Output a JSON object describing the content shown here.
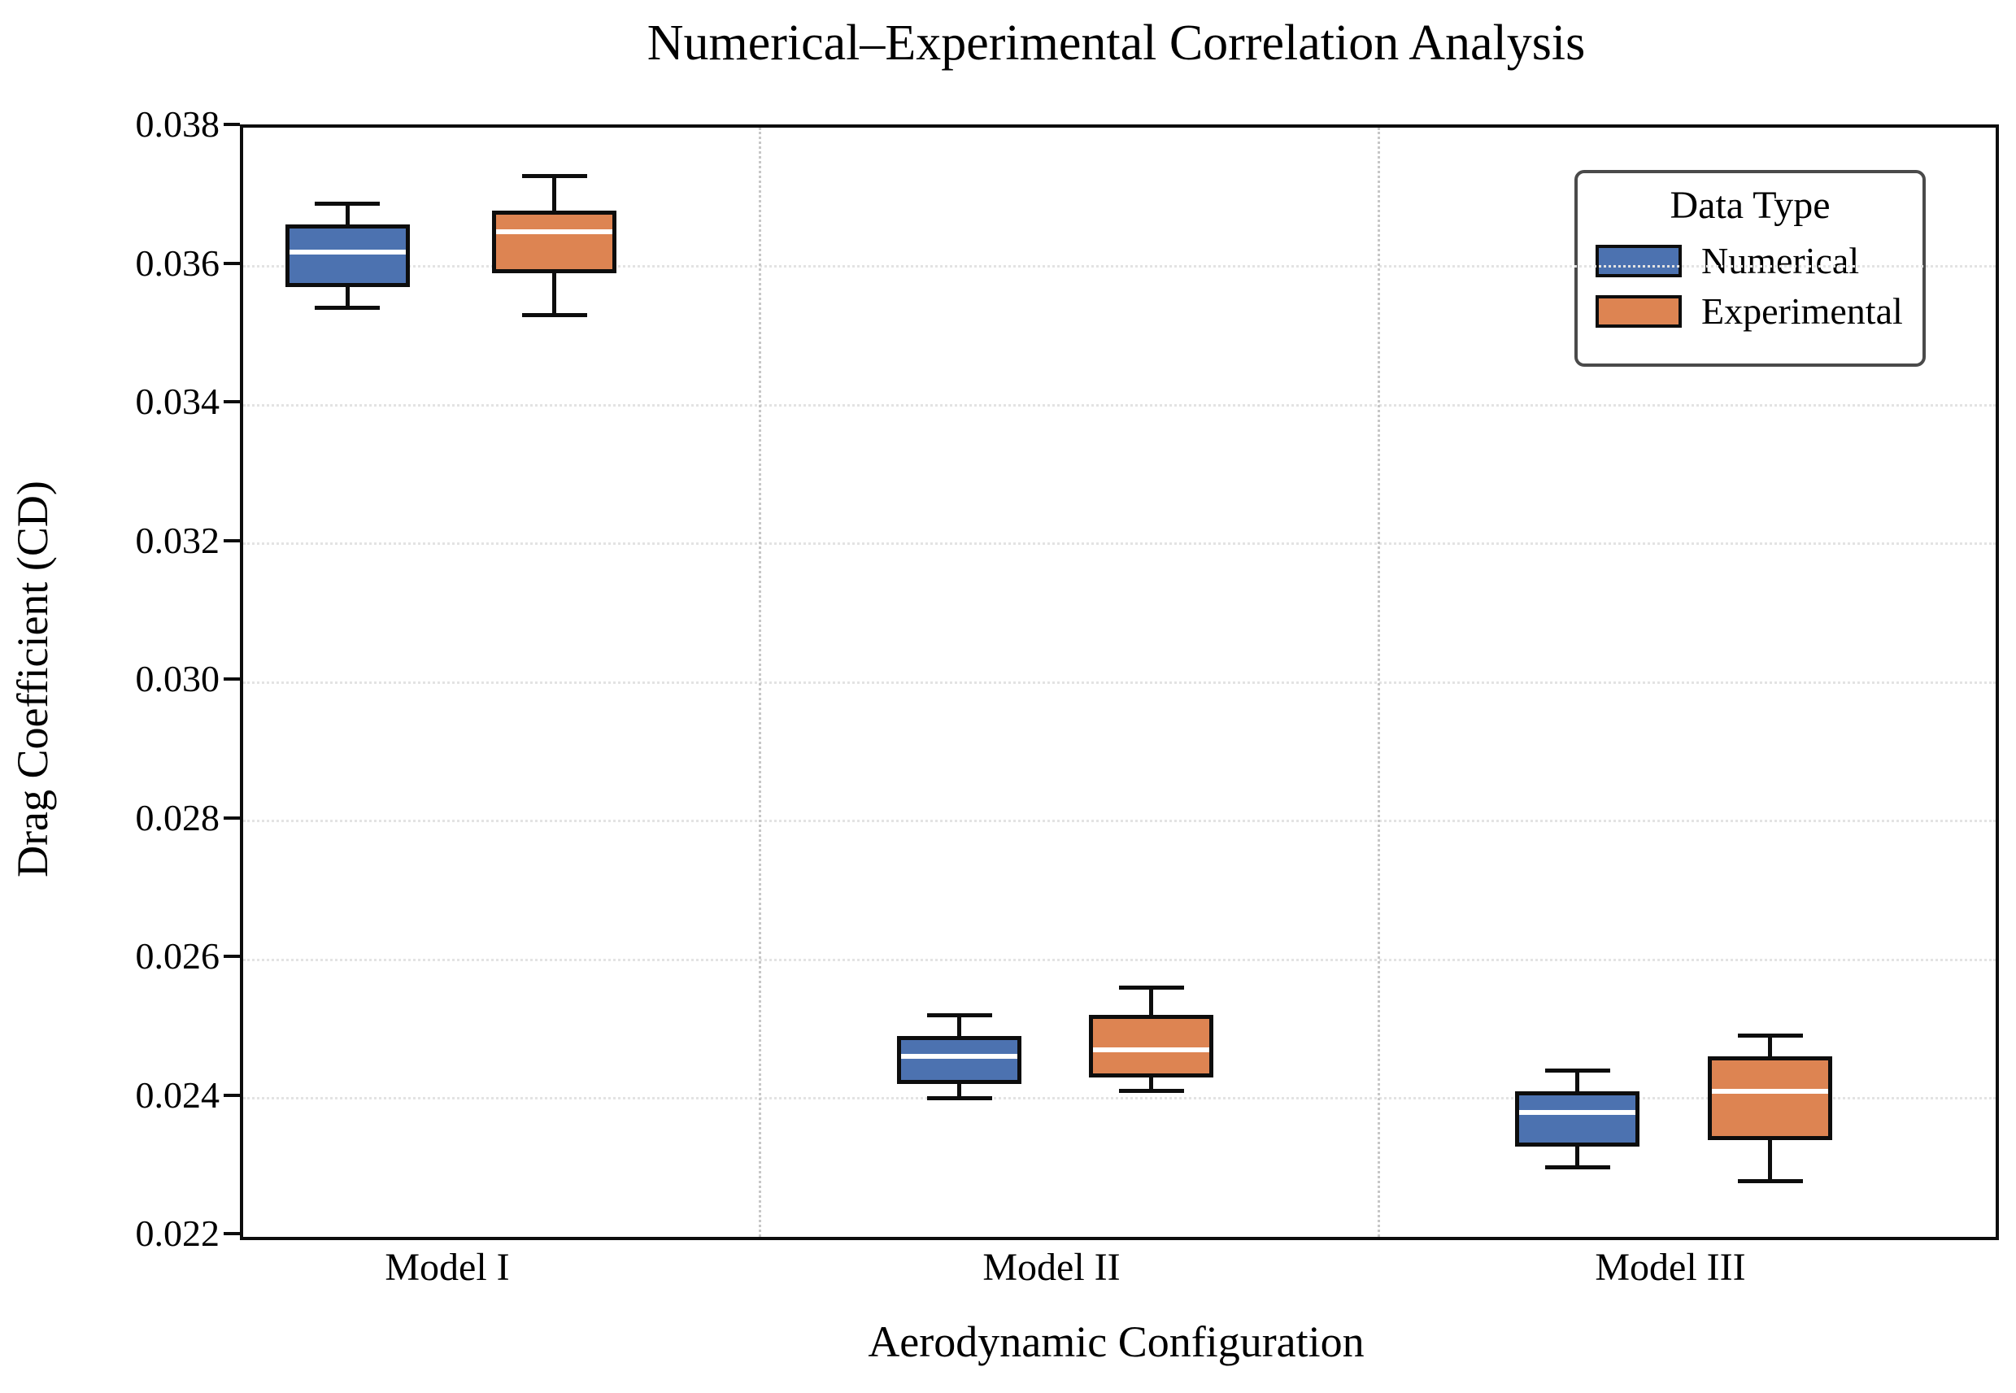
{
  "chart_data": {
    "type": "boxplot",
    "title": "Numerical–Experimental Correlation Analysis",
    "xlabel": "Aerodynamic Configuration",
    "ylabel": "Drag Coefficient (CD)",
    "categories": [
      "Model I",
      "Model II",
      "Model III"
    ],
    "ylim": [
      0.022,
      0.038
    ],
    "y_ticks": [
      0.022,
      0.024,
      0.026,
      0.028,
      0.03,
      0.032,
      0.034,
      0.036,
      0.038
    ],
    "y_tick_labels": [
      "0.022",
      "0.024",
      "0.026",
      "0.028",
      "0.030",
      "0.032",
      "0.034",
      "0.036",
      "0.038"
    ],
    "grid": {
      "horizontal": "dotted",
      "vertical_category_separators": "dotted",
      "legend_position": "upper right"
    },
    "colors": {
      "numerical": "#4C72B0",
      "experimental": "#DD8452",
      "median_line": "#FFFFFF",
      "box_edge": "#0d0d0d"
    },
    "legend": {
      "title": "Data Type",
      "entries": [
        {
          "label": "Numerical",
          "color": "#4C72B0"
        },
        {
          "label": "Experimental",
          "color": "#DD8452"
        }
      ]
    },
    "series": [
      {
        "name": "Numerical",
        "color": "#4C72B0",
        "boxes": [
          {
            "category": "Model I",
            "whisker_low": 0.0354,
            "q1": 0.0357,
            "median": 0.0362,
            "q3": 0.0366,
            "whisker_high": 0.0369
          },
          {
            "category": "Model II",
            "whisker_low": 0.024,
            "q1": 0.0242,
            "median": 0.0246,
            "q3": 0.0249,
            "whisker_high": 0.0252
          },
          {
            "category": "Model III",
            "whisker_low": 0.023,
            "q1": 0.0233,
            "median": 0.0238,
            "q3": 0.0241,
            "whisker_high": 0.0244
          }
        ]
      },
      {
        "name": "Experimental",
        "color": "#DD8452",
        "boxes": [
          {
            "category": "Model I",
            "whisker_low": 0.0353,
            "q1": 0.0359,
            "median": 0.0365,
            "q3": 0.0368,
            "whisker_high": 0.0373
          },
          {
            "category": "Model II",
            "whisker_low": 0.0241,
            "q1": 0.0243,
            "median": 0.0247,
            "q3": 0.0252,
            "whisker_high": 0.0256
          },
          {
            "category": "Model III",
            "whisker_low": 0.0228,
            "q1": 0.0234,
            "median": 0.0241,
            "q3": 0.0246,
            "whisker_high": 0.0249
          }
        ]
      }
    ]
  }
}
